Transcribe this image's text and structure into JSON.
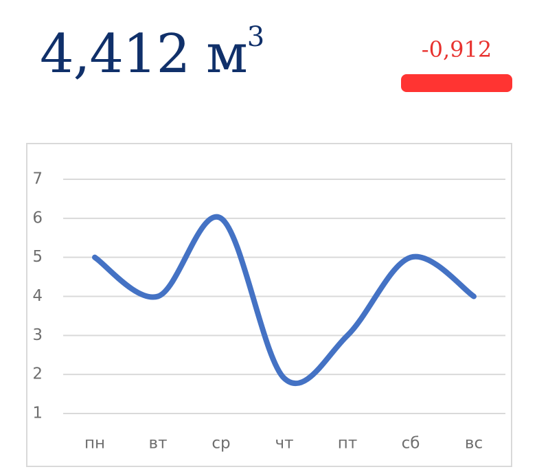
{
  "metric": {
    "value": "4,412",
    "unit": "м",
    "unit_sup": "3",
    "color": "#10306a"
  },
  "delta": {
    "value": "-0,912",
    "color": "#e8322f",
    "bar_color": "#ff3432"
  },
  "chart_data": {
    "type": "line",
    "categories": [
      "пн",
      "вт",
      "ср",
      "чт",
      "пт",
      "сб",
      "вс"
    ],
    "series": [
      {
        "values": [
          5,
          4,
          6,
          1.9,
          3,
          5,
          4
        ],
        "color": "#4472c4"
      }
    ],
    "title": "",
    "xlabel": "",
    "ylabel": "",
    "ylim": [
      1,
      7
    ],
    "yticks": [
      1,
      2,
      3,
      4,
      5,
      6,
      7
    ],
    "grid": true,
    "smooth": true,
    "legend": "none"
  }
}
